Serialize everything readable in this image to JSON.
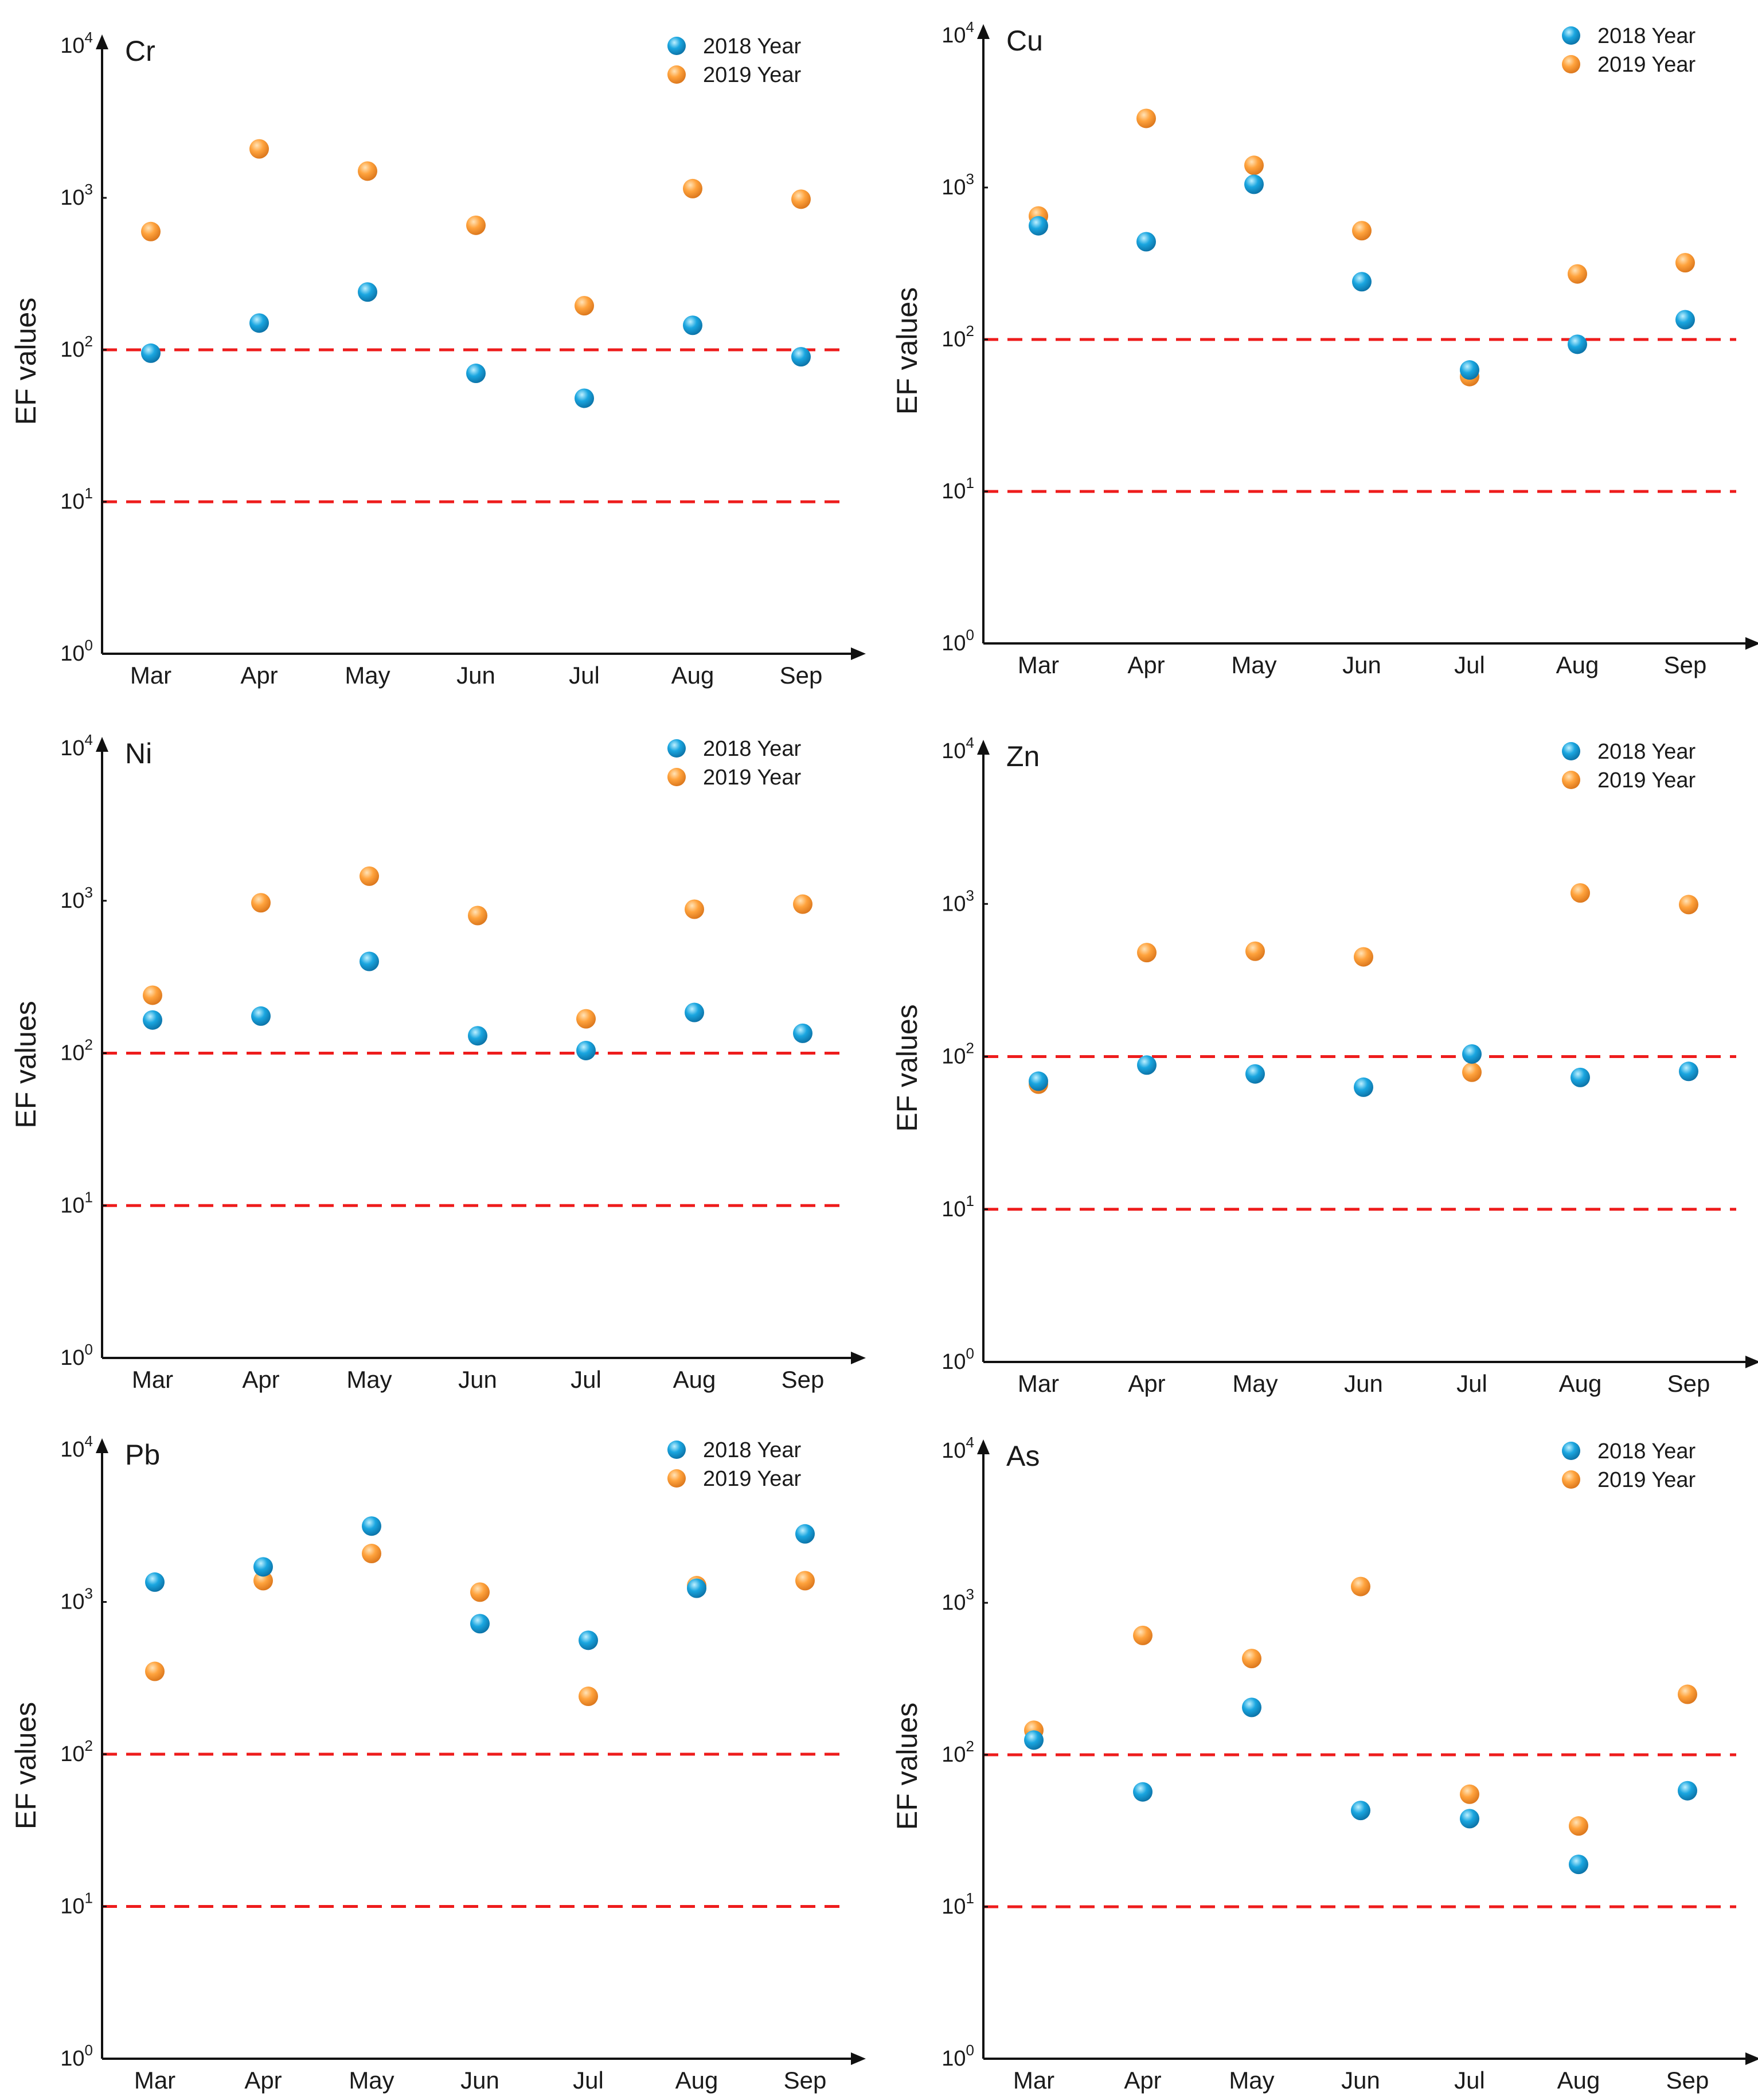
{
  "colors": {
    "series_2018": "#1aa6e0",
    "series_2018_shade": "#0b6fa3",
    "series_2019": "#ffa33d",
    "series_2019_shade": "#d9741a",
    "threshold": "#ee1c1c",
    "axis": "#111111"
  },
  "chart_data": [
    {
      "type": "scatter",
      "title": "Cr",
      "xlabel": "",
      "ylabel": "EF values",
      "yscale": "log",
      "ylim": [
        1,
        10000
      ],
      "y_ticks": [
        {
          "base": "10",
          "exp": "0"
        },
        {
          "base": "10",
          "exp": "1"
        },
        {
          "base": "10",
          "exp": "2"
        },
        {
          "base": "10",
          "exp": "3"
        },
        {
          "base": "10",
          "exp": "4"
        }
      ],
      "categories": [
        "Mar",
        "Apr",
        "May",
        "Jun",
        "Jul",
        "Aug",
        "Sep"
      ],
      "thresholds": [
        10,
        100
      ],
      "legend_position": "top-right",
      "series": [
        {
          "name": "2018 Year",
          "values": [
            95,
            150,
            240,
            70,
            48,
            145,
            90
          ]
        },
        {
          "name": "2019 Year",
          "values": [
            600,
            2100,
            1500,
            660,
            195,
            1150,
            980
          ]
        }
      ]
    },
    {
      "type": "scatter",
      "title": "Cu",
      "xlabel": "",
      "ylabel": "EF values",
      "yscale": "log",
      "ylim": [
        1,
        10000
      ],
      "y_ticks": [
        {
          "base": "10",
          "exp": "0"
        },
        {
          "base": "10",
          "exp": "1"
        },
        {
          "base": "10",
          "exp": "2"
        },
        {
          "base": "10",
          "exp": "3"
        },
        {
          "base": "10",
          "exp": "4"
        }
      ],
      "categories": [
        "Mar",
        "Apr",
        "May",
        "Jun",
        "Jul",
        "Aug",
        "Sep"
      ],
      "thresholds": [
        10,
        100
      ],
      "legend_position": "top-right",
      "series": [
        {
          "name": "2018 Year",
          "values": [
            560,
            440,
            1050,
            240,
            63,
            93,
            135
          ]
        },
        {
          "name": "2019 Year",
          "values": [
            650,
            2850,
            1400,
            520,
            57,
            270,
            320
          ]
        }
      ]
    },
    {
      "type": "scatter",
      "title": "Ni",
      "xlabel": "",
      "ylabel": "EF values",
      "yscale": "log",
      "ylim": [
        1,
        10000
      ],
      "y_ticks": [
        {
          "base": "10",
          "exp": "0"
        },
        {
          "base": "10",
          "exp": "1"
        },
        {
          "base": "10",
          "exp": "2"
        },
        {
          "base": "10",
          "exp": "3"
        },
        {
          "base": "10",
          "exp": "4"
        }
      ],
      "categories": [
        "Mar",
        "Apr",
        "May",
        "Jun",
        "Jul",
        "Aug",
        "Sep"
      ],
      "thresholds": [
        10,
        100
      ],
      "legend_position": "top-right",
      "series": [
        {
          "name": "2018 Year",
          "values": [
            165,
            175,
            400,
            130,
            104,
            185,
            135
          ]
        },
        {
          "name": "2019 Year",
          "values": [
            240,
            970,
            1450,
            800,
            168,
            880,
            950
          ]
        }
      ]
    },
    {
      "type": "scatter",
      "title": "Zn",
      "xlabel": "",
      "ylabel": "EF values",
      "yscale": "log",
      "ylim": [
        1,
        10000
      ],
      "y_ticks": [
        {
          "base": "10",
          "exp": "0"
        },
        {
          "base": "10",
          "exp": "1"
        },
        {
          "base": "10",
          "exp": "2"
        },
        {
          "base": "10",
          "exp": "3"
        },
        {
          "base": "10",
          "exp": "4"
        }
      ],
      "categories": [
        "Mar",
        "Apr",
        "May",
        "Jun",
        "Jul",
        "Aug",
        "Sep"
      ],
      "thresholds": [
        10,
        100
      ],
      "legend_position": "top-right",
      "series": [
        {
          "name": "2018 Year",
          "values": [
            69,
            88,
            77,
            63,
            104,
            73,
            80
          ]
        },
        {
          "name": "2019 Year",
          "values": [
            66,
            480,
            490,
            450,
            79,
            1180,
            990
          ]
        }
      ]
    },
    {
      "type": "scatter",
      "title": "Pb",
      "xlabel": "",
      "ylabel": "EF values",
      "yscale": "log",
      "ylim": [
        1,
        10000
      ],
      "y_ticks": [
        {
          "base": "10",
          "exp": "0"
        },
        {
          "base": "10",
          "exp": "1"
        },
        {
          "base": "10",
          "exp": "2"
        },
        {
          "base": "10",
          "exp": "3"
        },
        {
          "base": "10",
          "exp": "4"
        }
      ],
      "categories": [
        "Mar",
        "Apr",
        "May",
        "Jun",
        "Jul",
        "Aug",
        "Sep"
      ],
      "thresholds": [
        10,
        100
      ],
      "legend_position": "top-right",
      "series": [
        {
          "name": "2018 Year",
          "values": [
            1350,
            1700,
            3150,
            720,
            560,
            1230,
            2800
          ]
        },
        {
          "name": "2019 Year",
          "values": [
            350,
            1380,
            2080,
            1160,
            240,
            1280,
            1380
          ]
        }
      ]
    },
    {
      "type": "scatter",
      "title": "As",
      "xlabel": "",
      "ylabel": "EF values",
      "yscale": "log",
      "ylim": [
        1,
        10000
      ],
      "y_ticks": [
        {
          "base": "10",
          "exp": "0"
        },
        {
          "base": "10",
          "exp": "1"
        },
        {
          "base": "10",
          "exp": "2"
        },
        {
          "base": "10",
          "exp": "3"
        },
        {
          "base": "10",
          "exp": "4"
        }
      ],
      "categories": [
        "Mar",
        "Apr",
        "May",
        "Jun",
        "Jul",
        "Aug",
        "Sep"
      ],
      "thresholds": [
        10,
        100
      ],
      "legend_position": "top-right",
      "series": [
        {
          "name": "2018 Year",
          "values": [
            125,
            57,
            205,
            43,
            38,
            19,
            58
          ]
        },
        {
          "name": "2019 Year",
          "values": [
            145,
            610,
            430,
            1280,
            55,
            34,
            250
          ]
        }
      ]
    }
  ]
}
